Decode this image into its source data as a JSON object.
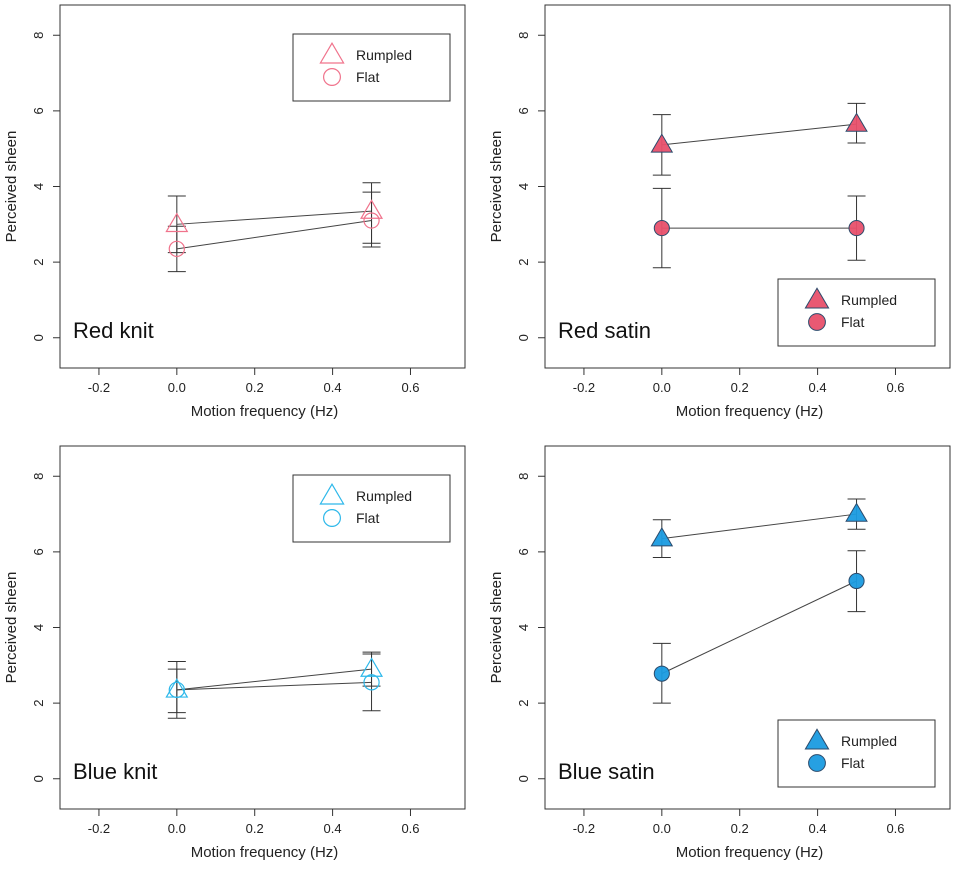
{
  "chart_data": [
    {
      "type": "line",
      "panel_label": "Red knit",
      "xlabel": "Motion frequency (Hz)",
      "ylabel": "Perceived sheen",
      "xlim": [
        -0.3,
        0.74
      ],
      "ylim": [
        -0.8,
        8.8
      ],
      "xticks": [
        -0.2,
        0.0,
        0.2,
        0.4,
        0.6
      ],
      "xtick_labels": [
        "-0.2",
        "0.0",
        "0.2",
        "0.4",
        "0.6"
      ],
      "yticks": [
        0,
        2,
        4,
        6,
        8
      ],
      "ytick_labels": [
        "0",
        "2",
        "4",
        "6",
        "8"
      ],
      "color": "#f0738c",
      "filled": false,
      "legend_position": "top-right",
      "series": [
        {
          "name": "Rumpled",
          "marker": "triangle",
          "x": [
            0.0,
            0.5
          ],
          "y": [
            3.0,
            3.35
          ],
          "err_low": [
            2.25,
            2.5
          ],
          "err_high": [
            3.75,
            4.1
          ]
        },
        {
          "name": "Flat",
          "marker": "circle",
          "x": [
            0.0,
            0.5
          ],
          "y": [
            2.35,
            3.1
          ],
          "err_low": [
            1.75,
            2.4
          ],
          "err_high": [
            2.95,
            3.85
          ]
        }
      ]
    },
    {
      "type": "line",
      "panel_label": "Red satin",
      "xlabel": "Motion frequency (Hz)",
      "ylabel": "Perceived sheen",
      "xlim": [
        -0.3,
        0.74
      ],
      "ylim": [
        -0.8,
        8.8
      ],
      "xticks": [
        -0.2,
        0.0,
        0.2,
        0.4,
        0.6
      ],
      "xtick_labels": [
        "-0.2",
        "0.0",
        "0.2",
        "0.4",
        "0.6"
      ],
      "yticks": [
        0,
        2,
        4,
        6,
        8
      ],
      "ytick_labels": [
        "0",
        "2",
        "4",
        "6",
        "8"
      ],
      "color": "#e8506b",
      "filled": true,
      "legend_position": "bottom-right",
      "series": [
        {
          "name": "Rumpled",
          "marker": "triangle",
          "x": [
            0.0,
            0.5
          ],
          "y": [
            5.1,
            5.65
          ],
          "err_low": [
            4.3,
            5.15
          ],
          "err_high": [
            5.9,
            6.2
          ]
        },
        {
          "name": "Flat",
          "marker": "circle",
          "x": [
            0.0,
            0.5
          ],
          "y": [
            2.9,
            2.9
          ],
          "err_low": [
            1.85,
            2.05
          ],
          "err_high": [
            3.95,
            3.75
          ]
        }
      ]
    },
    {
      "type": "line",
      "panel_label": "Blue knit",
      "xlabel": "Motion frequency (Hz)",
      "ylabel": "Perceived sheen",
      "xlim": [
        -0.3,
        0.74
      ],
      "ylim": [
        -0.8,
        8.8
      ],
      "xticks": [
        -0.2,
        0.0,
        0.2,
        0.4,
        0.6
      ],
      "xtick_labels": [
        "-0.2",
        "0.0",
        "0.2",
        "0.4",
        "0.6"
      ],
      "yticks": [
        0,
        2,
        4,
        6,
        8
      ],
      "ytick_labels": [
        "0",
        "2",
        "4",
        "6",
        "8"
      ],
      "color": "#2db8ea",
      "filled": false,
      "legend_position": "top-right",
      "series": [
        {
          "name": "Rumpled",
          "marker": "triangle",
          "x": [
            0.0,
            0.5
          ],
          "y": [
            2.35,
            2.9
          ],
          "err_low": [
            1.75,
            2.45
          ],
          "err_high": [
            2.9,
            3.35
          ]
        },
        {
          "name": "Flat",
          "marker": "circle",
          "x": [
            0.0,
            0.5
          ],
          "y": [
            2.35,
            2.55
          ],
          "err_low": [
            1.6,
            1.8
          ],
          "err_high": [
            3.1,
            3.3
          ]
        }
      ]
    },
    {
      "type": "line",
      "panel_label": "Blue satin",
      "xlabel": "Motion frequency (Hz)",
      "ylabel": "Perceived sheen",
      "xlim": [
        -0.3,
        0.74
      ],
      "ylim": [
        -0.8,
        8.8
      ],
      "xticks": [
        -0.2,
        0.0,
        0.2,
        0.4,
        0.6
      ],
      "xtick_labels": [
        "-0.2",
        "0.0",
        "0.2",
        "0.4",
        "0.6"
      ],
      "yticks": [
        0,
        2,
        4,
        6,
        8
      ],
      "ytick_labels": [
        "0",
        "2",
        "4",
        "6",
        "8"
      ],
      "color": "#1a9be0",
      "filled": true,
      "legend_position": "bottom-right",
      "series": [
        {
          "name": "Rumpled",
          "marker": "triangle",
          "x": [
            0.0,
            0.5
          ],
          "y": [
            6.35,
            7.0
          ],
          "err_low": [
            5.85,
            6.6
          ],
          "err_high": [
            6.85,
            7.4
          ]
        },
        {
          "name": "Flat",
          "marker": "circle",
          "x": [
            0.0,
            0.5
          ],
          "y": [
            2.78,
            5.23
          ],
          "err_low": [
            2.0,
            4.42
          ],
          "err_high": [
            3.58,
            6.03
          ]
        }
      ]
    }
  ]
}
